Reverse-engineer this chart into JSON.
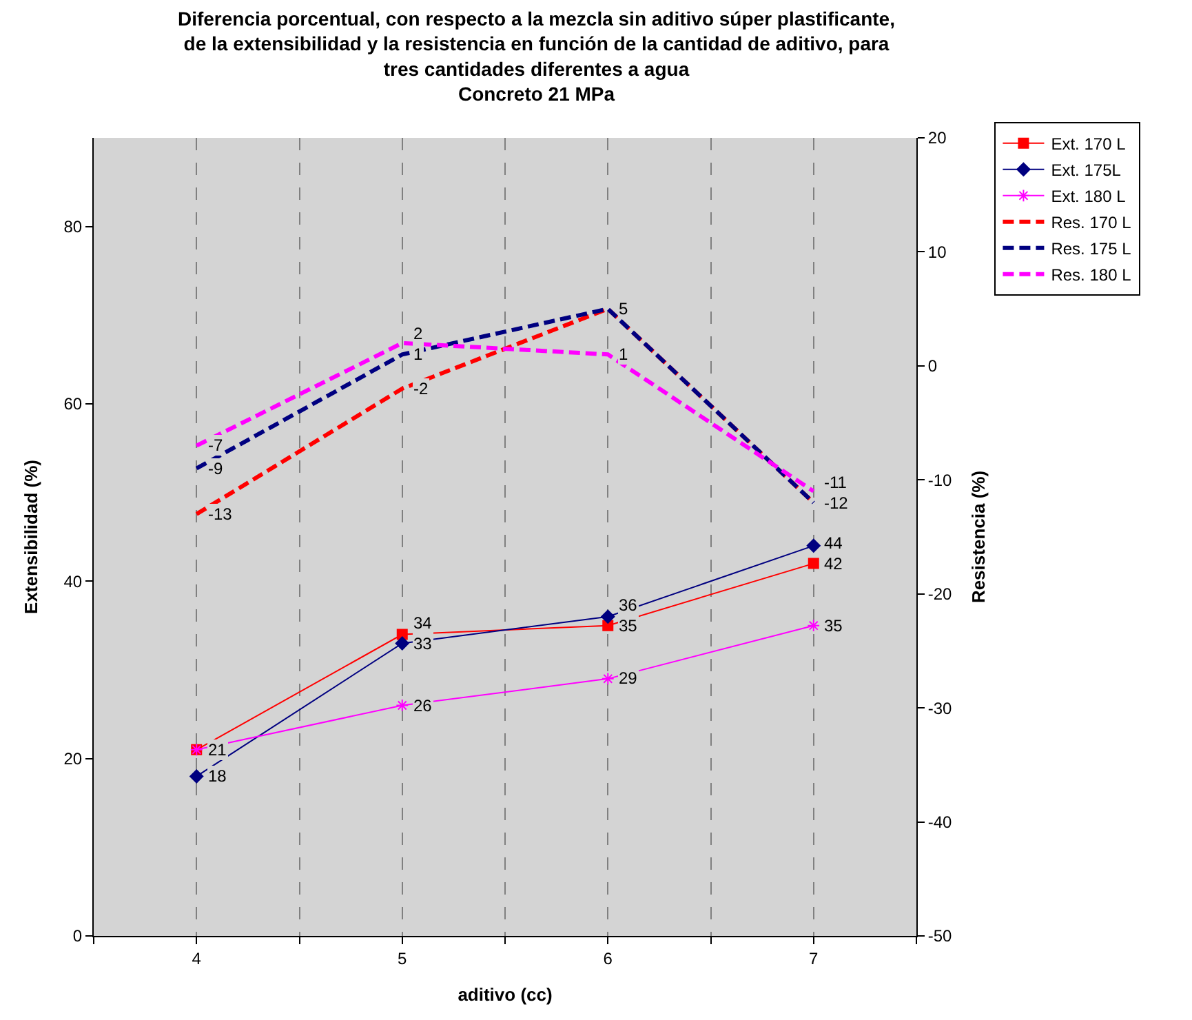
{
  "chart_data": {
    "type": "line",
    "title": "Diferencia porcentual, con respecto a la mezcla sin aditivo súper plastificante,\nde la extensibilidad y la resistencia en función de la cantidad de aditivo, para\ntres cantidades diferentes a agua\nConcreto 21 MPa",
    "xlabel": "aditivo (cc)",
    "ylabel": "Extensibilidad (%)",
    "y2label": "Resistencia (%)",
    "x": [
      4,
      5,
      6,
      7
    ],
    "xlim": [
      3.5,
      7.5
    ],
    "xticks": [
      {
        "value": 3.5,
        "label": null
      },
      4,
      {
        "value": 4.5,
        "label": null
      },
      5,
      {
        "value": 5.5,
        "label": null
      },
      6,
      {
        "value": 6.5,
        "label": null
      },
      7,
      {
        "value": 7.5,
        "label": null
      }
    ],
    "ylim": [
      0,
      90
    ],
    "yticks": [
      0,
      20,
      40,
      60,
      80
    ],
    "y2lim": [
      -50,
      20
    ],
    "y2ticks": [
      -50,
      -40,
      -30,
      -20,
      -10,
      0,
      10,
      20
    ],
    "grid": "x",
    "legend": "top right",
    "series": [
      {
        "name": "Ext. 170 L",
        "color": "#ff0000",
        "values": [
          21,
          34,
          35,
          42
        ],
        "value_labels": [
          null,
          "34",
          "35",
          "42"
        ],
        "marker": "square",
        "line_style": "solid"
      },
      {
        "name": "Ext. 175L",
        "color": "#000080",
        "values": [
          18,
          33,
          36,
          44
        ],
        "value_labels": [
          "18",
          "33",
          "36",
          "44"
        ],
        "marker": "diamond",
        "line_style": "solid"
      },
      {
        "name": "Ext. 180 L",
        "color": "#ff00ff",
        "values": [
          21,
          26,
          29,
          35
        ],
        "value_labels": [
          "21",
          "26",
          "29",
          "35"
        ],
        "marker": "cross",
        "line_style": "solid"
      },
      {
        "name": "Res. 170 L",
        "color": "#ff0000",
        "values": [
          -13,
          -2,
          5,
          -12
        ],
        "value_labels": [
          "-13",
          "-2",
          "5",
          null
        ],
        "marker": "none",
        "line_style": "dashed",
        "axis": "y2"
      },
      {
        "name": "Res. 175 L",
        "color": "#000080",
        "values": [
          -9,
          1,
          5,
          -12
        ],
        "value_labels": [
          "-9",
          "1",
          null,
          "-12"
        ],
        "marker": "none",
        "line_style": "dashed",
        "axis": "y2"
      },
      {
        "name": "Res. 180 L",
        "color": "#ff00ff",
        "values": [
          -7,
          2,
          1,
          -11
        ],
        "value_labels": [
          "-7",
          "2",
          "1",
          "-11"
        ],
        "marker": "none",
        "line_style": "dashed",
        "axis": "y2"
      }
    ]
  }
}
